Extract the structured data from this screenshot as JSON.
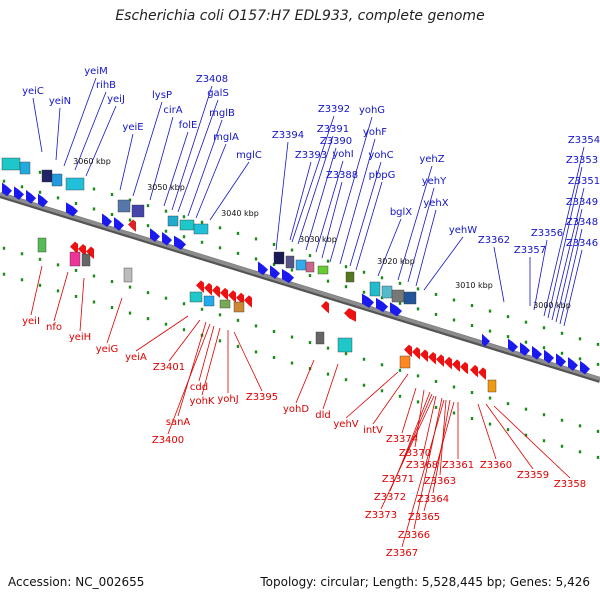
{
  "title": "Escherichia coli O157:H7 EDL933, complete genome",
  "footer": {
    "accession": "Accession: NC_002655",
    "summary": "Topology: circular; Length: 5,528,445 bp; Genes: 5,426"
  },
  "colors": {
    "forward_label": "#1414c8",
    "reverse_label": "#dd0000",
    "forward_arrow": "#1a1aee",
    "reverse_arrow": "#ee1111",
    "backbone": "#8c8c8c",
    "tick": "#1a8a1a"
  },
  "kbp_markers": [
    "3060 kbp",
    "3050 kbp",
    "3040 kbp",
    "3030 kbp",
    "3020 kbp",
    "3010 kbp",
    "3000 kbp"
  ],
  "forward_genes": [
    "yeiC",
    "yeiN",
    "yeiM",
    "rihB",
    "yeiJ",
    "yeiE",
    "lysP",
    "cirA",
    "folE",
    "Z3408",
    "galS",
    "mglB",
    "mglA",
    "mglC",
    "Z3394",
    "Z3393",
    "Z3392",
    "Z3391",
    "Z3390",
    "yohI",
    "Z3388",
    "yohG",
    "yohF",
    "yohC",
    "pbpG",
    "bglX",
    "yehZ",
    "yehY",
    "yehX",
    "yehW",
    "Z3362",
    "Z3357",
    "Z3356",
    "Z3354",
    "Z3353",
    "Z3351",
    "Z3349",
    "Z3348",
    "Z3346"
  ],
  "reverse_genes": [
    "yeiI",
    "nfo",
    "yeiH",
    "yeiG",
    "yeiA",
    "Z3401",
    "sanA",
    "Z3400",
    "cdd",
    "yohK",
    "yohJ",
    "Z3395",
    "yohD",
    "dld",
    "yehV",
    "intV",
    "Z3374",
    "Z3370",
    "Z3371",
    "Z3372",
    "Z3373",
    "Z3368",
    "Z3366",
    "Z3367",
    "Z3363",
    "Z3364",
    "Z3365",
    "Z3361",
    "Z3360",
    "Z3359",
    "Z3358"
  ]
}
